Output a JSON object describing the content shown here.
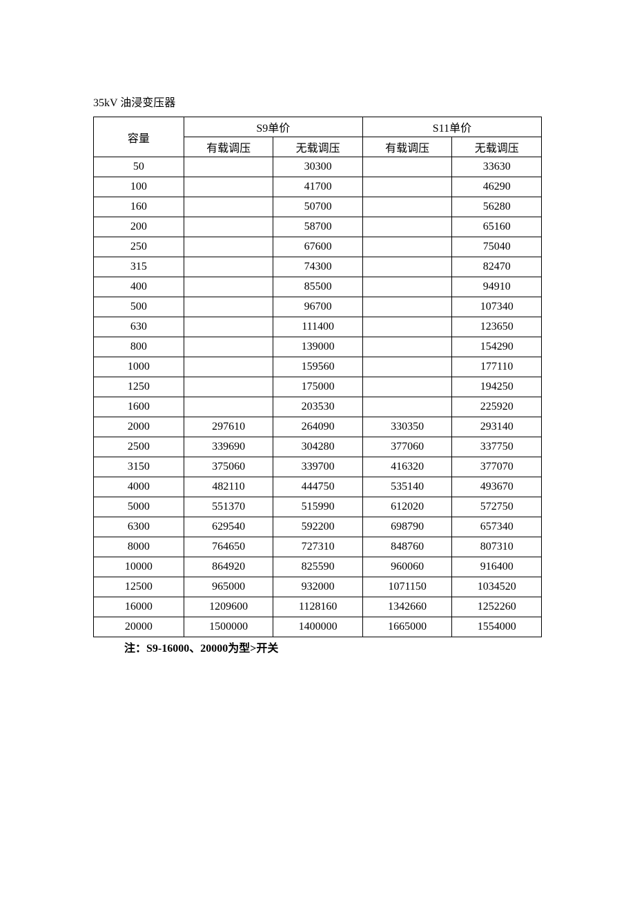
{
  "title": "35kV 油浸变压器",
  "columns": {
    "capacity": "容量",
    "s9_price": "S9单价",
    "s11_price": "S11单价",
    "onload": "有载调压",
    "noload": "无载调压"
  },
  "rows": [
    {
      "cap": "50",
      "s9_on": "",
      "s9_off": "30300",
      "s11_on": "",
      "s11_off": "33630"
    },
    {
      "cap": "100",
      "s9_on": "",
      "s9_off": "41700",
      "s11_on": "",
      "s11_off": "46290"
    },
    {
      "cap": "160",
      "s9_on": "",
      "s9_off": "50700",
      "s11_on": "",
      "s11_off": "56280"
    },
    {
      "cap": "200",
      "s9_on": "",
      "s9_off": "58700",
      "s11_on": "",
      "s11_off": "65160"
    },
    {
      "cap": "250",
      "s9_on": "",
      "s9_off": "67600",
      "s11_on": "",
      "s11_off": "75040"
    },
    {
      "cap": "315",
      "s9_on": "",
      "s9_off": "74300",
      "s11_on": "",
      "s11_off": "82470"
    },
    {
      "cap": "400",
      "s9_on": "",
      "s9_off": "85500",
      "s11_on": "",
      "s11_off": "94910"
    },
    {
      "cap": "500",
      "s9_on": "",
      "s9_off": "96700",
      "s11_on": "",
      "s11_off": "107340"
    },
    {
      "cap": "630",
      "s9_on": "",
      "s9_off": "111400",
      "s11_on": "",
      "s11_off": "123650"
    },
    {
      "cap": "800",
      "s9_on": "",
      "s9_off": "139000",
      "s11_on": "",
      "s11_off": "154290"
    },
    {
      "cap": "1000",
      "s9_on": "",
      "s9_off": "159560",
      "s11_on": "",
      "s11_off": "177110"
    },
    {
      "cap": "1250",
      "s9_on": "",
      "s9_off": "175000",
      "s11_on": "",
      "s11_off": "194250"
    },
    {
      "cap": "1600",
      "s9_on": "",
      "s9_off": "203530",
      "s11_on": "",
      "s11_off": "225920"
    },
    {
      "cap": "2000",
      "s9_on": "297610",
      "s9_off": "264090",
      "s11_on": "330350",
      "s11_off": "293140"
    },
    {
      "cap": "2500",
      "s9_on": "339690",
      "s9_off": "304280",
      "s11_on": "377060",
      "s11_off": "337750"
    },
    {
      "cap": "3150",
      "s9_on": "375060",
      "s9_off": "339700",
      "s11_on": "416320",
      "s11_off": "377070"
    },
    {
      "cap": "4000",
      "s9_on": "482110",
      "s9_off": "444750",
      "s11_on": "535140",
      "s11_off": "493670"
    },
    {
      "cap": "5000",
      "s9_on": "551370",
      "s9_off": "515990",
      "s11_on": "612020",
      "s11_off": "572750"
    },
    {
      "cap": "6300",
      "s9_on": "629540",
      "s9_off": "592200",
      "s11_on": "698790",
      "s11_off": "657340"
    },
    {
      "cap": "8000",
      "s9_on": "764650",
      "s9_off": "727310",
      "s11_on": "848760",
      "s11_off": "807310"
    },
    {
      "cap": "10000",
      "s9_on": "864920",
      "s9_off": "825590",
      "s11_on": "960060",
      "s11_off": "916400"
    },
    {
      "cap": "12500",
      "s9_on": "965000",
      "s9_off": "932000",
      "s11_on": "1071150",
      "s11_off": "1034520"
    },
    {
      "cap": "16000",
      "s9_on": "1209600",
      "s9_off": "1128160",
      "s11_on": "1342660",
      "s11_off": "1252260"
    },
    {
      "cap": "20000",
      "s9_on": "1500000",
      "s9_off": "1400000",
      "s11_on": "1665000",
      "s11_off": "1554000"
    }
  ],
  "note": "注：S9-16000、20000为型>开关",
  "style": {
    "background_color": "#ffffff",
    "border_color": "#000000",
    "text_color": "#000000",
    "header_fontsize": 16,
    "cell_fontsize": 16,
    "note_fontweight": "bold"
  }
}
